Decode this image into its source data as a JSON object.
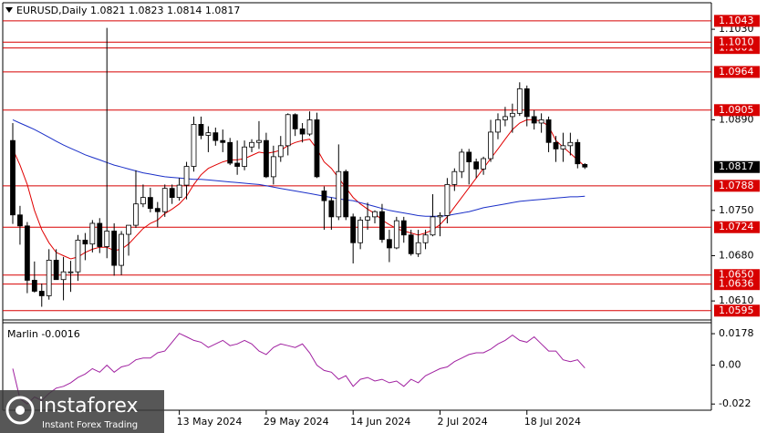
{
  "chart_data": [
    {
      "type": "candlestick",
      "title": "EURUSD,Daily 1.0821 1.0823 1.0814 1.0817",
      "categories": [
        null,
        null,
        null,
        null,
        null,
        null,
        null,
        null,
        null,
        null,
        null,
        null,
        null,
        null,
        null,
        null,
        null,
        null,
        null,
        null,
        null,
        null,
        null,
        "13 May 2024",
        null,
        null,
        null,
        null,
        null,
        null,
        null,
        null,
        null,
        null,
        null,
        "29 May 2024",
        null,
        null,
        null,
        null,
        null,
        null,
        null,
        null,
        null,
        null,
        null,
        "14 Jun 2024",
        null,
        null,
        null,
        null,
        null,
        null,
        null,
        null,
        null,
        null,
        null,
        "2 Jul 2024",
        null,
        null,
        null,
        null,
        null,
        null,
        null,
        null,
        null,
        null,
        null,
        "18 Jul 2024",
        null,
        null,
        null,
        null,
        null,
        null,
        null,
        null
      ],
      "open": [
        1.0858,
        1.0743,
        1.0726,
        1.0642,
        1.0625,
        1.0618,
        1.0673,
        1.0643,
        1.0655,
        1.0655,
        1.0704,
        1.0698,
        1.073,
        1.0694,
        1.0718,
        1.0665,
        1.0713,
        1.0727,
        1.076,
        1.077,
        1.0753,
        1.0748,
        1.0784,
        1.077,
        1.0789,
        1.0818,
        1.0883,
        1.0866,
        1.087,
        1.0858,
        1.0855,
        1.0823,
        1.0818,
        1.0848,
        1.0855,
        1.0858,
        1.0802,
        1.0833,
        1.085,
        1.0898,
        1.0876,
        1.0868,
        1.089,
        1.078,
        1.0765,
        1.074,
        1.081,
        1.074,
        1.07,
        1.0735,
        1.074,
        1.0748,
        1.0705,
        1.0692,
        1.0734,
        1.0712,
        1.0683,
        1.07,
        1.0712,
        1.074,
        1.0742,
        1.079,
        1.081,
        1.084,
        1.0825,
        1.0814,
        1.083,
        1.0871,
        1.089,
        1.0895,
        1.09,
        1.0938,
        1.0895,
        1.0885,
        1.089,
        1.0855,
        1.0845,
        1.085,
        1.0855,
        1.0821
      ],
      "high": [
        1.0885,
        1.0757,
        1.0732,
        1.0671,
        1.0637,
        1.069,
        1.069,
        1.0678,
        1.0672,
        1.0712,
        1.0715,
        1.0735,
        1.0738,
        1.1032,
        1.073,
        1.0718,
        1.0725,
        1.0812,
        1.079,
        1.0785,
        1.0763,
        1.079,
        1.079,
        1.08,
        1.0825,
        1.0895,
        1.0895,
        1.088,
        1.0878,
        1.0875,
        1.0862,
        1.0858,
        1.0858,
        1.086,
        1.0888,
        1.087,
        1.085,
        1.0865,
        1.09,
        1.09,
        1.0885,
        1.0903,
        1.0901,
        1.0787,
        1.077,
        1.0852,
        1.0813,
        1.0745,
        1.074,
        1.0762,
        1.075,
        1.076,
        1.072,
        1.074,
        1.074,
        1.072,
        1.072,
        1.072,
        1.0775,
        1.0747,
        1.08,
        1.0815,
        1.0845,
        1.0845,
        1.083,
        1.0833,
        1.089,
        1.09,
        1.091,
        1.0915,
        1.0948,
        1.0943,
        1.0905,
        1.09,
        1.0895,
        1.0865,
        1.087,
        1.087,
        1.086,
        1.0823
      ],
      "low": [
        1.0729,
        1.0697,
        1.0622,
        1.0623,
        1.0601,
        1.0612,
        1.0645,
        1.0611,
        1.0624,
        1.0641,
        1.0673,
        1.0685,
        1.0684,
        1.0676,
        1.0649,
        1.065,
        1.068,
        1.0723,
        1.0755,
        1.0747,
        1.0724,
        1.074,
        1.076,
        1.0765,
        1.0767,
        1.081,
        1.086,
        1.084,
        1.085,
        1.084,
        1.082,
        1.0805,
        1.0812,
        1.084,
        1.0845,
        1.08,
        1.079,
        1.0825,
        1.0835,
        1.0865,
        1.0855,
        1.0865,
        1.08,
        1.072,
        1.072,
        1.0735,
        1.0735,
        1.0668,
        1.069,
        1.072,
        1.073,
        1.07,
        1.067,
        1.069,
        1.07,
        1.068,
        1.0678,
        1.069,
        1.071,
        1.071,
        1.073,
        1.078,
        1.08,
        1.079,
        1.08,
        1.0805,
        1.0825,
        1.086,
        1.088,
        1.087,
        1.0896,
        1.088,
        1.0875,
        1.087,
        1.084,
        1.0825,
        1.0825,
        1.0835,
        1.0815,
        1.0814
      ],
      "close": [
        1.0743,
        1.0726,
        1.0642,
        1.0625,
        1.0618,
        1.0673,
        1.0643,
        1.0655,
        1.0655,
        1.0704,
        1.0698,
        1.073,
        1.0694,
        1.0718,
        1.0665,
        1.0713,
        1.0727,
        1.076,
        1.077,
        1.0753,
        1.0748,
        1.0784,
        1.077,
        1.0789,
        1.0818,
        1.0883,
        1.0866,
        1.087,
        1.0858,
        1.0855,
        1.0823,
        1.0818,
        1.0848,
        1.0855,
        1.0858,
        1.0802,
        1.0833,
        1.085,
        1.0898,
        1.0876,
        1.0868,
        1.089,
        1.0802,
        1.0765,
        1.074,
        1.081,
        1.074,
        1.07,
        1.0735,
        1.074,
        1.0748,
        1.0705,
        1.0692,
        1.0734,
        1.0712,
        1.0683,
        1.07,
        1.0712,
        1.074,
        1.0742,
        1.079,
        1.081,
        1.084,
        1.0825,
        1.0814,
        1.083,
        1.0871,
        1.089,
        1.0895,
        1.09,
        1.0938,
        1.0895,
        1.0885,
        1.089,
        1.0855,
        1.0845,
        1.085,
        1.0855,
        1.0822,
        1.0817
      ],
      "overlays": [
        {
          "color": "#e00000",
          "values": [
            1.0845,
            1.082,
            1.079,
            1.075,
            1.072,
            1.07,
            1.0685,
            1.068,
            1.0675,
            1.0678,
            1.0685,
            1.069,
            1.0693,
            1.0693,
            1.0688,
            1.069,
            1.0698,
            1.071,
            1.0722,
            1.073,
            1.0735,
            1.0745,
            1.0752,
            1.076,
            1.0772,
            1.079,
            1.0805,
            1.0815,
            1.082,
            1.0825,
            1.0828,
            1.0828,
            1.083,
            1.0835,
            1.084,
            1.0838,
            1.084,
            1.0843,
            1.085,
            1.0855,
            1.0858,
            1.086,
            1.0845,
            1.0825,
            1.0815,
            1.08,
            1.0785,
            1.077,
            1.076,
            1.0752,
            1.0745,
            1.0735,
            1.0728,
            1.0722,
            1.0718,
            1.0715,
            1.0712,
            1.0715,
            1.072,
            1.0728,
            1.074,
            1.0755,
            1.077,
            1.0785,
            1.08,
            1.0815,
            1.083,
            1.0845,
            1.086,
            1.0875,
            1.0885,
            1.089,
            1.089,
            1.0888,
            1.088,
            1.0858,
            1.0848,
            1.0838,
            1.0828,
            1.0818
          ]
        },
        {
          "color": "#1a2fc8",
          "values": [
            1.089,
            1.0885,
            1.088,
            1.0875,
            1.0869,
            1.0863,
            1.0857,
            1.0851,
            1.0846,
            1.0841,
            1.0836,
            1.0832,
            1.0828,
            1.0824,
            1.082,
            1.0817,
            1.0814,
            1.0811,
            1.0808,
            1.0806,
            1.0804,
            1.0802,
            1.0801,
            1.08,
            1.0799,
            1.0798,
            1.0798,
            1.0797,
            1.0796,
            1.0795,
            1.0794,
            1.0793,
            1.0792,
            1.0791,
            1.079,
            1.0788,
            1.0786,
            1.0784,
            1.0782,
            1.078,
            1.0778,
            1.0776,
            1.0774,
            1.0772,
            1.077,
            1.0768,
            1.0766,
            1.0765,
            1.0762,
            1.0759,
            1.0756,
            1.0753,
            1.075,
            1.0748,
            1.0746,
            1.0744,
            1.0742,
            1.0741,
            1.0741,
            1.0741,
            1.0742,
            1.0744,
            1.0746,
            1.0748,
            1.0751,
            1.0754,
            1.0756,
            1.0758,
            1.076,
            1.0762,
            1.0764,
            1.0765,
            1.0766,
            1.0767,
            1.0768,
            1.0769,
            1.077,
            1.0771,
            1.0771,
            1.0772
          ]
        }
      ],
      "levels": [
        {
          "value": 1.1043,
          "label": "1.1043"
        },
        {
          "value": 1.1001,
          "label": "1.1001"
        },
        {
          "value": 1.101,
          "label": "1.1010"
        },
        1.0964,
        1.0905,
        1.0788,
        1.0724,
        {
          "value": 1.065,
          "label": "1.0650"
        },
        1.0636,
        1.0595
      ],
      "level_color": "#d80000",
      "last_price": 1.0817,
      "ylim": [
        1.0582,
        1.1071
      ],
      "yticks": [
        {
          "value": 1.103,
          "label": "1.1030"
        },
        {
          "value": 1.089,
          "label": "1.0890"
        },
        {
          "value": 1.075,
          "label": "1.0750"
        },
        {
          "value": 1.068,
          "label": "1.0680"
        },
        {
          "value": 1.061,
          "label": "1.0610"
        }
      ]
    },
    {
      "type": "line",
      "title": "Marlin -0.0016",
      "color": "#a020a0",
      "values": [
        -0.002,
        -0.019,
        -0.022,
        -0.018,
        -0.02,
        -0.016,
        -0.013,
        -0.012,
        -0.01,
        -0.007,
        -0.005,
        -0.002,
        -0.004,
        0,
        -0.004,
        -0.001,
        0,
        0.003,
        0.004,
        0.004,
        0.007,
        0.008,
        0.013,
        0.018,
        0.016,
        0.014,
        0.013,
        0.01,
        0.012,
        0.014,
        0.011,
        0.012,
        0.014,
        0.012,
        0.008,
        0.006,
        0.01,
        0.012,
        0.011,
        0.01,
        0.012,
        0.007,
        0,
        -0.003,
        -0.004,
        -0.008,
        -0.006,
        -0.012,
        -0.008,
        -0.007,
        -0.009,
        -0.008,
        -0.01,
        -0.009,
        -0.012,
        -0.008,
        -0.01,
        -0.006,
        -0.004,
        -0.002,
        -0.001,
        0.002,
        0.004,
        0.006,
        0.007,
        0.007,
        0.009,
        0.012,
        0.014,
        0.017,
        0.014,
        0.013,
        0.016,
        0.012,
        0.008,
        0.008,
        0.003,
        0.002,
        0.003,
        -0.0016
      ],
      "ylim": [
        -0.0255,
        0.0235
      ],
      "yticks": [
        0.0178,
        {
          "value": 0,
          "label": "0.00"
        },
        -0.022
      ]
    }
  ],
  "watermark": {
    "brand": "instaforex",
    "tagline": "Instant Forex Trading"
  }
}
